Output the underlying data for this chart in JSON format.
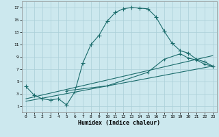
{
  "xlabel": "Humidex (Indice chaleur)",
  "bg_color": "#cce8ee",
  "grid_color": "#aacfd8",
  "line_color": "#1a6b6b",
  "xlim": [
    -0.5,
    23.5
  ],
  "ylim": [
    0,
    18
  ],
  "xticks": [
    0,
    1,
    2,
    3,
    4,
    5,
    6,
    7,
    8,
    9,
    10,
    11,
    12,
    13,
    14,
    15,
    16,
    17,
    18,
    19,
    20,
    21,
    22,
    23
  ],
  "yticks": [
    1,
    3,
    5,
    7,
    9,
    11,
    13,
    15,
    17
  ],
  "series1_x": [
    0,
    1,
    2,
    3,
    4,
    5,
    6,
    7,
    8,
    9,
    10,
    11,
    12,
    13,
    14,
    15,
    16,
    17,
    18,
    19,
    20,
    21,
    22,
    23
  ],
  "series1_y": [
    4.2,
    2.8,
    2.2,
    2.0,
    2.2,
    1.2,
    3.3,
    8.0,
    11.0,
    12.5,
    14.8,
    16.2,
    16.8,
    17.0,
    16.9,
    16.8,
    15.5,
    13.2,
    11.2,
    10.0,
    9.6,
    8.6,
    8.2,
    7.5
  ],
  "series2_x": [
    0,
    23
  ],
  "series2_y": [
    2.2,
    9.2
  ],
  "series3_x": [
    0,
    23
  ],
  "series3_y": [
    1.8,
    7.5
  ],
  "series4_x": [
    5,
    10,
    15,
    17,
    19,
    20,
    21,
    22,
    23
  ],
  "series4_y": [
    3.5,
    4.3,
    6.5,
    8.6,
    9.5,
    8.8,
    8.5,
    7.8,
    7.5
  ]
}
